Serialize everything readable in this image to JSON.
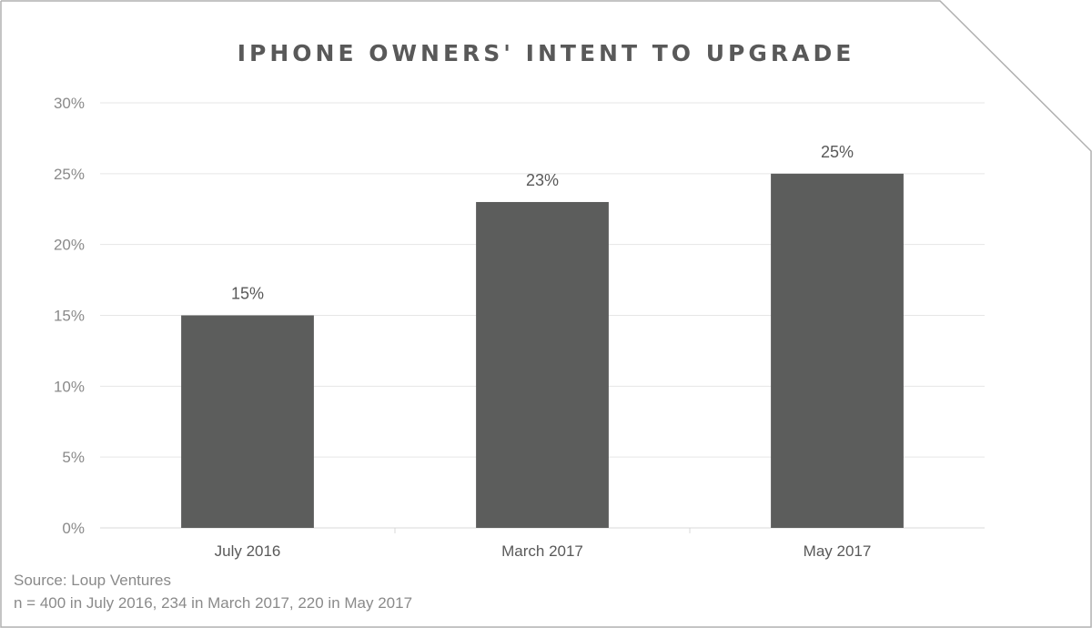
{
  "chart_data": {
    "type": "bar",
    "title": "IPHONE OWNERS' INTENT TO UPGRADE",
    "categories": [
      "July 2016",
      "March 2017",
      "May 2017"
    ],
    "values": [
      15,
      23,
      25
    ],
    "data_labels": [
      "15%",
      "23%",
      "25%"
    ],
    "xlabel": "",
    "ylabel": "",
    "ylim": [
      0,
      30
    ],
    "y_ticks": [
      0,
      5,
      10,
      15,
      20,
      25,
      30
    ],
    "y_tick_labels": [
      "0%",
      "5%",
      "10%",
      "15%",
      "20%",
      "25%",
      "30%"
    ],
    "grid": true,
    "legend": "none",
    "colors": {
      "bar": "#5c5d5c",
      "grid": "#e6e6e6",
      "frame": "#b0b0b0"
    }
  },
  "footnotes": {
    "source": "Source: Loup Ventures",
    "sample": "n = 400 in July 2016, 234 in March 2017, 220 in May 2017"
  }
}
